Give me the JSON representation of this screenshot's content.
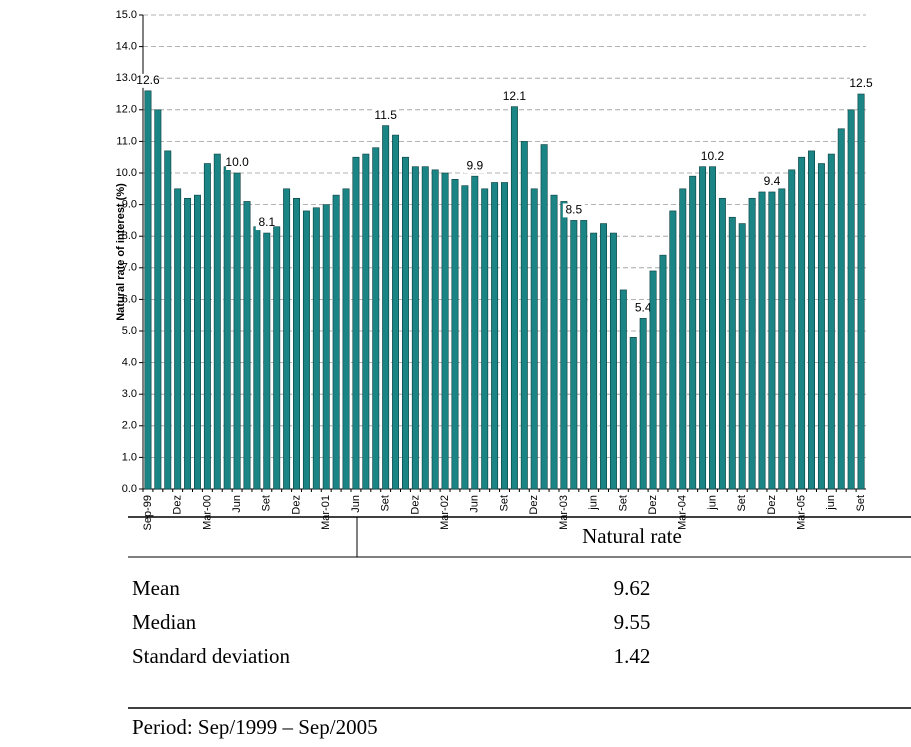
{
  "chart_data": {
    "type": "bar",
    "y_label": "Natural rate of interest (%)",
    "categories": [
      "Sep-99",
      null,
      null,
      "Dez",
      null,
      null,
      "Mar-00",
      null,
      null,
      "Jun",
      null,
      null,
      "Set",
      null,
      null,
      "Dez",
      null,
      null,
      "Mar-01",
      null,
      null,
      "Jun",
      null,
      null,
      "Set",
      null,
      null,
      "Dez",
      null,
      null,
      "Mar-02",
      null,
      null,
      "Jun",
      null,
      null,
      "Set",
      null,
      null,
      "Dez",
      null,
      null,
      "Mar-03",
      null,
      null,
      "jun",
      null,
      null,
      "Set",
      null,
      null,
      "Dez",
      null,
      null,
      "Mar-04",
      null,
      null,
      "jun",
      null,
      null,
      "Set",
      null,
      null,
      "Dez",
      null,
      null,
      "Mar-05",
      null,
      null,
      "jun",
      null,
      null,
      "Set"
    ],
    "values": [
      12.6,
      12.0,
      10.7,
      9.5,
      9.2,
      9.3,
      10.3,
      10.6,
      10.2,
      10.0,
      9.1,
      8.3,
      8.1,
      8.3,
      9.5,
      9.2,
      8.8,
      8.9,
      9.0,
      9.3,
      9.5,
      10.5,
      10.6,
      10.8,
      11.5,
      11.2,
      10.5,
      10.2,
      10.2,
      10.1,
      10.0,
      9.8,
      9.6,
      9.9,
      9.5,
      9.7,
      9.7,
      12.1,
      11.0,
      9.5,
      10.9,
      9.3,
      9.1,
      8.5,
      8.5,
      8.1,
      8.4,
      8.1,
      6.3,
      4.8,
      5.4,
      6.9,
      7.4,
      8.8,
      9.5,
      9.9,
      10.2,
      10.2,
      9.2,
      8.6,
      8.4,
      9.2,
      9.4,
      9.4,
      9.5,
      10.1,
      10.5,
      10.7,
      10.3,
      10.6,
      11.4,
      12.0,
      12.5
    ],
    "value_labels": [
      "12.6",
      null,
      null,
      null,
      null,
      null,
      null,
      null,
      null,
      "10.0",
      null,
      null,
      "8.1",
      null,
      null,
      null,
      null,
      null,
      null,
      null,
      null,
      null,
      null,
      null,
      "11.5",
      null,
      null,
      null,
      null,
      null,
      null,
      null,
      null,
      "9.9",
      null,
      null,
      null,
      "12.1",
      null,
      null,
      null,
      null,
      null,
      "8.5",
      null,
      null,
      null,
      null,
      null,
      null,
      "5.4",
      null,
      null,
      null,
      null,
      null,
      null,
      "10.2",
      null,
      null,
      null,
      null,
      null,
      "9.4",
      null,
      null,
      null,
      null,
      null,
      null,
      null,
      null,
      "12.5"
    ],
    "color": "#1b8585",
    "ylim": [
      0,
      15
    ],
    "yticks": [
      {
        "value": 0,
        "label": "0.0"
      },
      {
        "value": 1,
        "label": "1.0"
      },
      {
        "value": 2,
        "label": "2.0"
      },
      {
        "value": 3,
        "label": "3.0"
      },
      {
        "value": 4,
        "label": "4.0"
      },
      {
        "value": 5,
        "label": "5.0"
      },
      {
        "value": 6,
        "label": "6.0"
      },
      {
        "value": 7,
        "label": "7.0"
      },
      {
        "value": 8,
        "label": "8.0"
      },
      {
        "value": 9,
        "label": "9.0"
      },
      {
        "value": 10,
        "label": "10.0"
      },
      {
        "value": 11,
        "label": "11.0"
      },
      {
        "value": 12,
        "label": "12.0"
      },
      {
        "value": 13,
        "label": "13.0"
      },
      {
        "value": 14,
        "label": "14.0"
      },
      {
        "value": 15,
        "label": "15.0"
      }
    ],
    "grid": true
  },
  "table": {
    "header": [
      "",
      "Natural rate"
    ],
    "rows": [
      [
        "Mean",
        "9.62"
      ],
      [
        "Median",
        "9.55"
      ],
      [
        "Standard deviation",
        "1.42"
      ]
    ],
    "note": "Period: Sep/1999 – Sep/2005"
  }
}
